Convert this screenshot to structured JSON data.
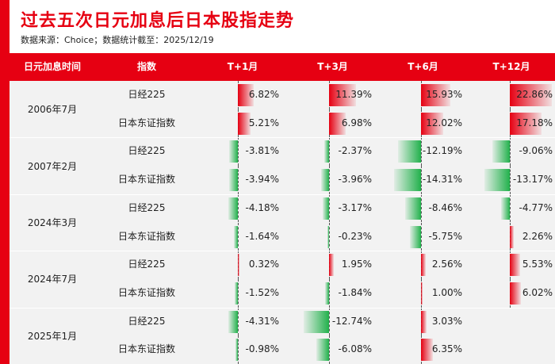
{
  "title": "过去五次日元加息后日本股指走势",
  "source": "数据来源：Choice；数据统计截至：2025/12/19",
  "colors": {
    "brand": "#e60012",
    "positive": "#e60012",
    "negative": "#22b14c"
  },
  "headers": [
    "日元加息时间",
    "指数",
    "T+1月",
    "T+3月",
    "T+6月",
    "T+12月"
  ],
  "groups": [
    {
      "date": "2006年7月",
      "rows": [
        {
          "index": "日经225",
          "values": [
            6.82,
            11.39,
            15.93,
            22.86
          ],
          "labels": [
            "6.82%",
            "11.39%",
            "15.93%",
            "22.86%"
          ]
        },
        {
          "index": "日本东证指数",
          "values": [
            5.21,
            6.98,
            12.02,
            17.18
          ],
          "labels": [
            "5.21%",
            "6.98%",
            "12.02%",
            "17.18%"
          ]
        }
      ]
    },
    {
      "date": "2007年2月",
      "rows": [
        {
          "index": "日经225",
          "values": [
            -3.81,
            -2.37,
            -12.19,
            -9.06
          ],
          "labels": [
            "-3.81%",
            "-2.37%",
            "-12.19%",
            "-9.06%"
          ]
        },
        {
          "index": "日本东证指数",
          "values": [
            -3.94,
            -3.96,
            -14.31,
            -13.17
          ],
          "labels": [
            "-3.94%",
            "-3.96%",
            "-14.31%",
            "-13.17%"
          ]
        }
      ]
    },
    {
      "date": "2024年3月",
      "rows": [
        {
          "index": "日经225",
          "values": [
            -4.18,
            -3.17,
            -8.46,
            -4.77
          ],
          "labels": [
            "-4.18%",
            "-3.17%",
            "-8.46%",
            "-4.77%"
          ]
        },
        {
          "index": "日本东证指数",
          "values": [
            -1.64,
            -0.23,
            -5.75,
            2.26
          ],
          "labels": [
            "-1.64%",
            "-0.23%",
            "-5.75%",
            "2.26%"
          ]
        }
      ]
    },
    {
      "date": "2024年7月",
      "rows": [
        {
          "index": "日经225",
          "values": [
            0.32,
            1.95,
            2.56,
            5.53
          ],
          "labels": [
            "0.32%",
            "1.95%",
            "2.56%",
            "5.53%"
          ]
        },
        {
          "index": "日本东证指数",
          "values": [
            -1.52,
            -1.84,
            1.0,
            6.02
          ],
          "labels": [
            "-1.52%",
            "-1.84%",
            "1.00%",
            "6.02%"
          ]
        }
      ]
    },
    {
      "date": "2025年1月",
      "rows": [
        {
          "index": "日经225",
          "values": [
            -4.31,
            -12.74,
            3.03,
            null
          ],
          "labels": [
            "-4.31%",
            "-12.74%",
            "3.03%",
            ""
          ]
        },
        {
          "index": "日本东证指数",
          "values": [
            -0.98,
            -6.08,
            6.35,
            null
          ],
          "labels": [
            "-0.98%",
            "-6.08%",
            "6.35%",
            ""
          ]
        }
      ]
    }
  ]
}
